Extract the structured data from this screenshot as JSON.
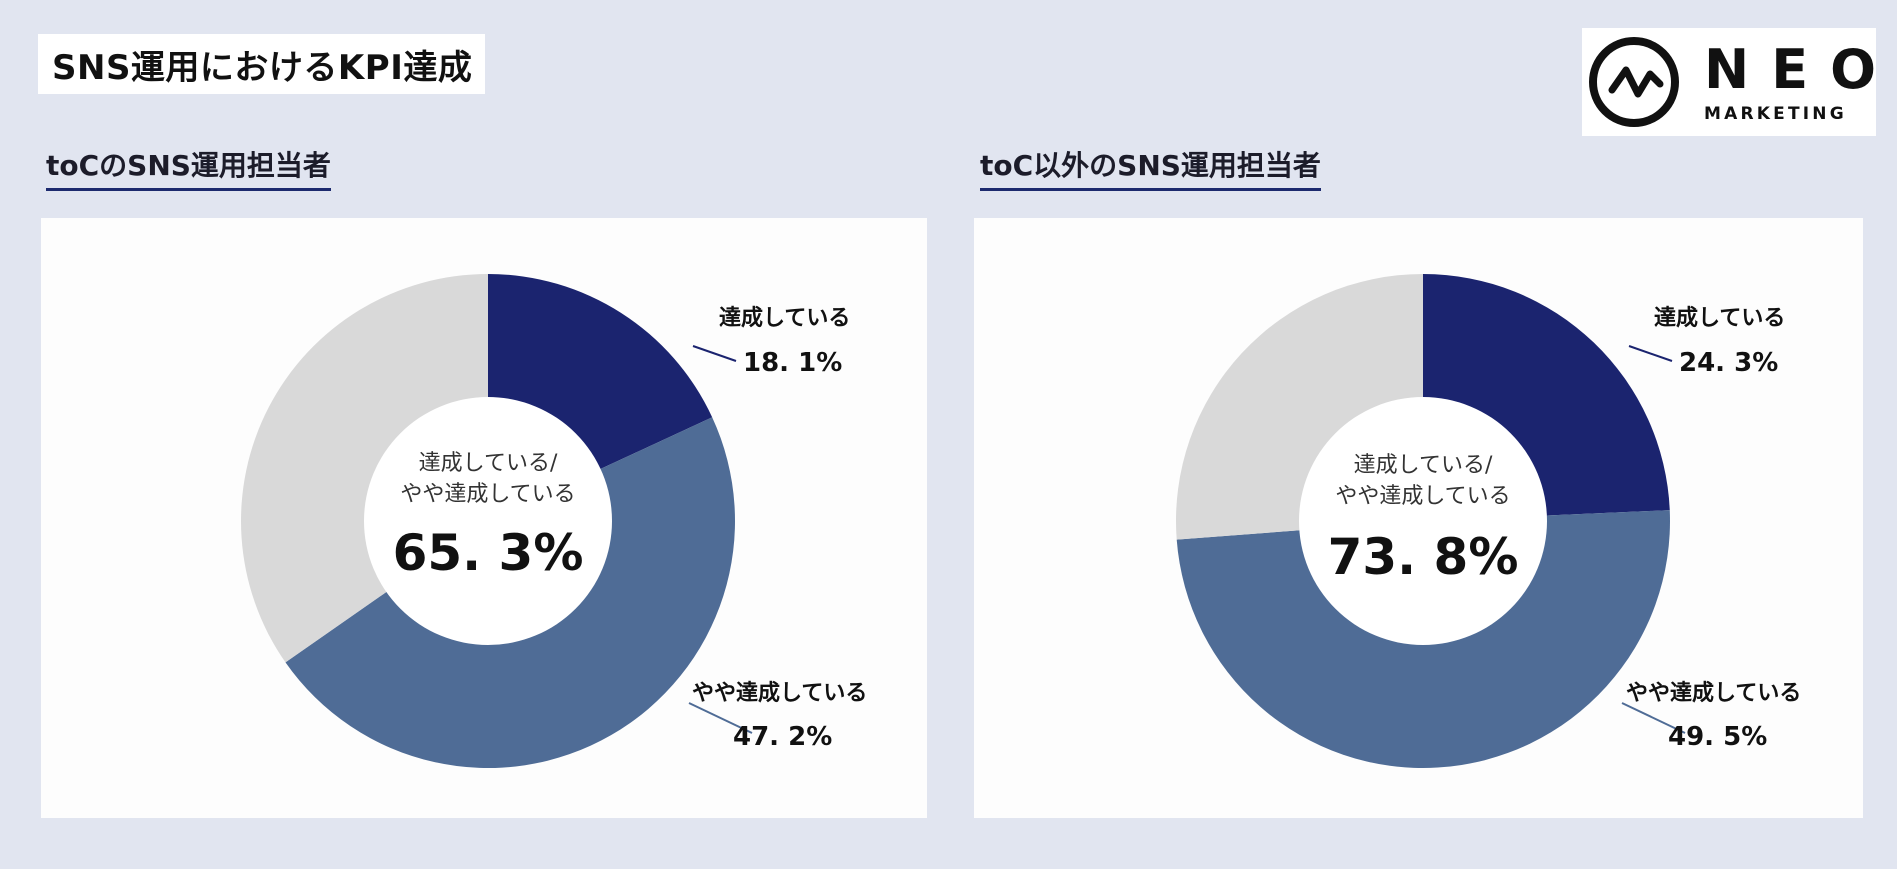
{
  "page_title": "SNS運用におけるKPI達成",
  "logo": {
    "brand": "NEO",
    "tagline": "MARKETING"
  },
  "colors": {
    "achieved": "#1b246f",
    "somewhat": "#4f6c96",
    "other": "#d9d9d9",
    "heading_underline": "#1c2a6e"
  },
  "chart_data": [
    {
      "type": "pie",
      "title": "toCのSNS運用担当者",
      "center_label_1": "達成している/",
      "center_label_2": "やや達成している",
      "center_value": "65. 3%",
      "slices": [
        {
          "label": "達成している",
          "value": 18.1,
          "display": "18. 1%",
          "color": "#1b246f"
        },
        {
          "label": "やや達成している",
          "value": 47.2,
          "display": "47. 2%",
          "color": "#4f6c96"
        },
        {
          "label": "",
          "value": 34.7,
          "display": "",
          "color": "#d9d9d9"
        }
      ]
    },
    {
      "type": "pie",
      "title": "toC以外のSNS運用担当者",
      "center_label_1": "達成している/",
      "center_label_2": "やや達成している",
      "center_value": "73. 8%",
      "slices": [
        {
          "label": "達成している",
          "value": 24.3,
          "display": "24. 3%",
          "color": "#1b246f"
        },
        {
          "label": "やや達成している",
          "value": 49.5,
          "display": "49. 5%",
          "color": "#4f6c96"
        },
        {
          "label": "",
          "value": 26.2,
          "display": "",
          "color": "#d9d9d9"
        }
      ]
    }
  ]
}
